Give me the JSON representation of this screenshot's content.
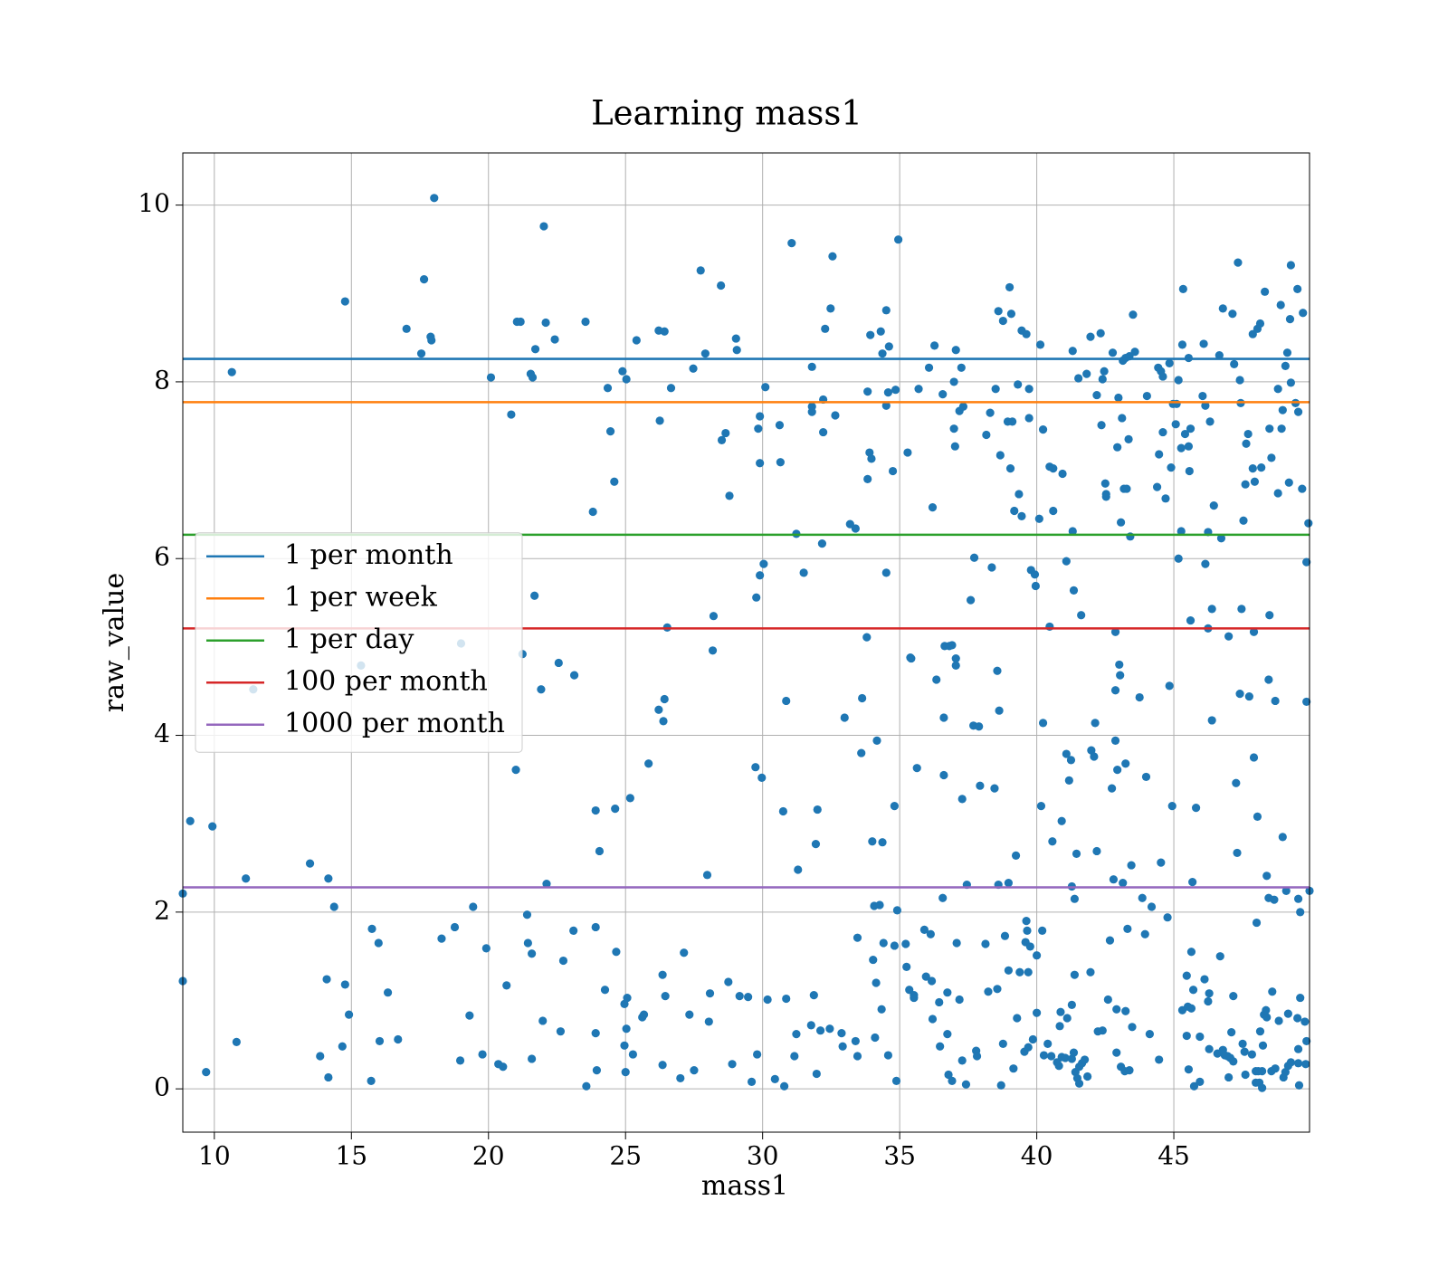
{
  "chart_data": {
    "type": "scatter",
    "title": "Learning mass1",
    "xlabel": "mass1",
    "ylabel": "raw_value",
    "color": "#1f77b4",
    "grid": true,
    "legend": "center left",
    "xlim": [
      8.85,
      49.95
    ],
    "ylim": [
      -0.49,
      10.59
    ],
    "xticks": [
      10,
      15,
      20,
      25,
      30,
      35,
      40,
      45
    ],
    "yticks": [
      0,
      2,
      4,
      6,
      8,
      10
    ],
    "lines": [
      {
        "name": "1 per month",
        "color": "#1f77b4",
        "value": 8.26
      },
      {
        "name": "1 per week",
        "color": "#ff7f0e",
        "value": 7.77
      },
      {
        "name": "1 per day",
        "color": "#2ca02c",
        "value": 6.27
      },
      {
        "name": "100 per month",
        "color": "#d62728",
        "value": 5.21
      },
      {
        "name": "1000 per month",
        "color": "#9467bd",
        "value": 2.28
      }
    ],
    "x": [
      8.85,
      8.85,
      9.12,
      9.7,
      9.93,
      10.64,
      10.81,
      11.15,
      11.42,
      13.49,
      13.86,
      14.1,
      14.16,
      14.16,
      14.37,
      14.67,
      14.77,
      14.77,
      14.91,
      15.35,
      15.72,
      15.75,
      15.99,
      16.03,
      16.33,
      16.7,
      17.01,
      17.55,
      17.65,
      17.89,
      17.92,
      18.02,
      18.29,
      18.77,
      18.97,
      19.0,
      19.31,
      19.44,
      19.78,
      19.92,
      20.09,
      20.36,
      20.53,
      20.66,
      20.83,
      21.0,
      21.04,
      21.17,
      21.24,
      21.41,
      21.44,
      21.54,
      21.58,
      21.58,
      21.61,
      21.68,
      21.71,
      21.92,
      21.98,
      22.02,
      22.09,
      22.12,
      22.42,
      22.56,
      22.63,
      22.73,
      23.1,
      23.13,
      23.54,
      23.57,
      23.81,
      23.91,
      23.91,
      23.91,
      23.95,
      24.05,
      24.25,
      24.35,
      24.45,
      24.59,
      24.62,
      24.66,
      24.89,
      24.96,
      24.96,
      25.0,
      25.03,
      25.03,
      25.06,
      25.17,
      25.27,
      25.4,
      25.61,
      25.67,
      25.84,
      26.21,
      26.25,
      26.21,
      26.35,
      26.35,
      26.42,
      26.38,
      26.42,
      26.45,
      26.52,
      26.66,
      27.0,
      27.13,
      27.33,
      27.47,
      27.5,
      27.74,
      27.91,
      27.98,
      28.04,
      28.08,
      28.18,
      28.21,
      28.48,
      28.51,
      28.65,
      28.75,
      28.79,
      28.89,
      29.03,
      29.06,
      29.16,
      29.47,
      29.6,
      29.74,
      29.77,
      29.8,
      29.84,
      29.9,
      29.9,
      29.9,
      29.97,
      30.04,
      30.1,
      30.18,
      30.45,
      30.62,
      30.65,
      30.75,
      30.79,
      30.86,
      30.86,
      31.06,
      31.16,
      31.23,
      31.23,
      31.29,
      31.5,
      31.77,
      31.8,
      31.8,
      31.8,
      31.87,
      31.94,
      31.97,
      32.0,
      32.11,
      32.17,
      32.21,
      32.21,
      32.28,
      32.48,
      32.45,
      32.55,
      32.65,
      32.88,
      32.92,
      32.99,
      33.19,
      33.39,
      33.39,
      33.46,
      33.46,
      33.6,
      33.63,
      33.8,
      33.83,
      33.83,
      33.9,
      33.93,
      33.97,
      34.0,
      34.03,
      34.07,
      34.1,
      34.14,
      34.17,
      34.27,
      34.31,
      34.34,
      34.37,
      34.37,
      34.41,
      34.51,
      34.51,
      34.51,
      34.58,
      34.58,
      34.61,
      34.75,
      34.81,
      34.81,
      34.85,
      34.88,
      34.91,
      34.95,
      35.22,
      35.25,
      35.29,
      35.35,
      35.39,
      35.42,
      35.52,
      35.52,
      35.63,
      35.69,
      35.9,
      35.96,
      36.07,
      36.13,
      36.17,
      36.2,
      36.2,
      36.27,
      36.34,
      36.44,
      36.47,
      36.57,
      36.57,
      36.61,
      36.61,
      36.64,
      36.74,
      36.74,
      36.78,
      36.81,
      36.91,
      36.91,
      36.98,
      36.98,
      37.02,
      37.05,
      37.05,
      37.05,
      37.08,
      37.18,
      37.18,
      37.25,
      37.28,
      37.28,
      37.32,
      37.42,
      37.45,
      37.59,
      37.69,
      37.72,
      37.79,
      37.82,
      37.89,
      37.93,
      38.13,
      38.16,
      38.23,
      38.3,
      38.36,
      38.46,
      38.5,
      38.56,
      38.56,
      38.6,
      38.6,
      38.63,
      38.67,
      38.7,
      38.77,
      38.77,
      38.84,
      38.94,
      38.97,
      38.97,
      39.01,
      39.04,
      39.11,
      39.07,
      39.15,
      39.18,
      39.24,
      39.28,
      39.31,
      39.35,
      39.38,
      39.45,
      39.45,
      39.55,
      39.59,
      39.62,
      39.62,
      39.65,
      39.69,
      39.69,
      39.72,
      39.72,
      39.76,
      39.79,
      39.86,
      39.93,
      39.96,
      40.0,
      40.0,
      40.09,
      40.13,
      40.16,
      40.2,
      40.23,
      40.23,
      40.26,
      40.4,
      40.47,
      40.47,
      40.53,
      40.57,
      40.6,
      40.6,
      40.74,
      40.81,
      40.84,
      40.87,
      40.91,
      40.91,
      40.94,
      41.04,
      41.08,
      41.08,
      41.11,
      41.18,
      41.25,
      41.28,
      41.28,
      41.28,
      41.31,
      41.31,
      41.35,
      41.35,
      41.38,
      41.38,
      41.41,
      41.45,
      41.48,
      41.52,
      41.55,
      41.55,
      41.62,
      41.65,
      41.75,
      41.82,
      41.85,
      41.96,
      41.96,
      41.99,
      42.09,
      42.13,
      42.19,
      42.19,
      42.23,
      42.33,
      42.36,
      42.4,
      42.4,
      42.46,
      42.5,
      42.53,
      42.53,
      42.6,
      42.67,
      42.74,
      42.77,
      42.8,
      42.87,
      42.87,
      42.87,
      42.91,
      42.91,
      42.94,
      42.94,
      42.98,
      43.01,
      43.04,
      43.07,
      43.07,
      43.11,
      43.14,
      43.14,
      43.18,
      43.21,
      43.24,
      43.24,
      43.24,
      43.28,
      43.31,
      43.35,
      43.38,
      43.38,
      43.41,
      43.45,
      43.48,
      43.51,
      43.58,
      43.75,
      43.85,
      43.95,
      43.99,
      44.02,
      44.12,
      44.19,
      44.39,
      44.43,
      44.46,
      44.46,
      44.53,
      44.53,
      44.6,
      44.6,
      44.7,
      44.77,
      44.84,
      44.84,
      44.9,
      44.94,
      44.97,
      45.07,
      45.1,
      45.17,
      45.17,
      45.27,
      45.27,
      45.31,
      45.34,
      45.31,
      45.41,
      45.47,
      45.47,
      45.51,
      45.54,
      45.54,
      45.54,
      45.57,
      45.61,
      45.61,
      45.64,
      45.64,
      45.68,
      45.71,
      45.74,
      45.81,
      45.95,
      45.95,
      46.05,
      46.09,
      46.12,
      46.15,
      46.15,
      46.25,
      46.25,
      46.25,
      46.29,
      46.29,
      46.32,
      46.39,
      46.39,
      46.46,
      46.59,
      46.66,
      46.69,
      46.73,
      46.79,
      46.79,
      46.86,
      46.96,
      47.0,
      47.0,
      47.06,
      47.1,
      47.14,
      47.17,
      47.17,
      47.2,
      47.27,
      47.31,
      47.34,
      47.41,
      47.41,
      47.44,
      47.47,
      47.51,
      47.54,
      47.58,
      47.61,
      47.61,
      47.64,
      47.71,
      47.75,
      47.85,
      47.88,
      47.88,
      47.92,
      47.92,
      47.95,
      47.99,
      47.99,
      48.02,
      48.05,
      48.05,
      48.08,
      48.12,
      48.15,
      48.15,
      48.19,
      48.22,
      48.22,
      48.25,
      48.29,
      48.32,
      48.36,
      48.39,
      48.39,
      48.46,
      48.46,
      48.49,
      48.49,
      48.56,
      48.56,
      48.59,
      48.66,
      48.7,
      48.7,
      48.8,
      48.8,
      48.83,
      48.9,
      48.93,
      48.97,
      48.97,
      49.0,
      49.07,
      49.07,
      49.1,
      49.14,
      49.17,
      49.2,
      49.24,
      49.27,
      49.27,
      49.27,
      49.44,
      49.51,
      49.51,
      49.54,
      49.54,
      49.54,
      49.54,
      49.57,
      49.61,
      49.68,
      49.71,
      49.78,
      49.81,
      49.84,
      49.84,
      49.84,
      49.91,
      49.95,
      49.61,
      49.17
    ],
    "values": [
      2.21,
      1.22,
      3.03,
      0.19,
      2.97,
      8.11,
      0.53,
      2.38,
      4.52,
      2.55,
      0.37,
      1.24,
      2.38,
      0.13,
      2.06,
      0.48,
      8.91,
      1.18,
      0.84,
      4.79,
      0.09,
      1.81,
      1.65,
      0.54,
      1.09,
      0.56,
      8.6,
      8.32,
      9.16,
      8.51,
      8.47,
      10.08,
      1.7,
      1.83,
      0.32,
      5.04,
      0.83,
      2.06,
      0.39,
      1.59,
      8.05,
      0.28,
      0.25,
      1.17,
      7.63,
      3.61,
      8.68,
      8.68,
      4.92,
      1.97,
      1.65,
      8.09,
      1.53,
      0.34,
      8.05,
      5.58,
      8.37,
      4.52,
      0.77,
      9.76,
      8.67,
      2.32,
      8.48,
      4.82,
      0.65,
      1.45,
      1.79,
      4.68,
      8.68,
      0.03,
      6.53,
      3.15,
      1.83,
      0.63,
      0.21,
      2.69,
      1.12,
      7.93,
      7.44,
      6.87,
      3.17,
      1.55,
      8.12,
      0.96,
      0.49,
      0.19,
      0.68,
      8.03,
      1.03,
      3.29,
      0.39,
      8.47,
      0.81,
      0.84,
      3.68,
      8.58,
      7.56,
      4.29,
      1.29,
      0.27,
      8.57,
      4.16,
      4.41,
      1.05,
      5.22,
      7.93,
      0.12,
      1.54,
      0.84,
      8.15,
      0.21,
      9.26,
      8.32,
      2.42,
      0.76,
      1.08,
      4.96,
      5.35,
      9.09,
      7.34,
      7.42,
      1.21,
      6.71,
      0.28,
      8.49,
      8.36,
      1.05,
      1.04,
      0.08,
      3.64,
      5.56,
      0.39,
      7.47,
      7.61,
      7.08,
      5.81,
      3.52,
      5.94,
      7.94,
      1.01,
      0.11,
      7.51,
      7.09,
      3.14,
      0.03,
      4.39,
      1.02,
      9.57,
      0.37,
      6.28,
      0.62,
      2.48,
      5.84,
      0.72,
      8.17,
      7.72,
      7.66,
      1.06,
      2.77,
      0.17,
      3.16,
      0.66,
      6.17,
      7.43,
      7.8,
      8.6,
      8.83,
      0.68,
      9.42,
      7.62,
      0.63,
      0.48,
      4.2,
      6.39,
      0.54,
      6.34,
      0.37,
      1.71,
      3.8,
      4.42,
      5.11,
      7.89,
      6.9,
      7.2,
      8.53,
      7.13,
      2.8,
      1.46,
      2.07,
      0.58,
      1.2,
      3.94,
      2.08,
      8.57,
      0.9,
      8.32,
      2.79,
      1.65,
      7.73,
      5.84,
      8.81,
      0.38,
      7.88,
      8.4,
      6.99,
      1.62,
      3.2,
      7.91,
      0.09,
      2.02,
      9.61,
      1.64,
      1.38,
      7.2,
      1.12,
      4.88,
      4.87,
      1.06,
      1.03,
      3.63,
      7.92,
      1.8,
      1.27,
      8.16,
      1.75,
      1.22,
      6.58,
      0.79,
      8.41,
      4.63,
      0.98,
      0.48,
      2.16,
      7.86,
      4.2,
      3.55,
      5.01,
      1.09,
      0.62,
      0.16,
      5.01,
      5.02,
      0.09,
      8.0,
      7.47,
      7.27,
      8.36,
      4.79,
      4.87,
      1.65,
      1.01,
      7.67,
      8.16,
      3.28,
      0.32,
      7.72,
      0.05,
      2.31,
      5.53,
      4.11,
      6.01,
      0.43,
      0.37,
      4.1,
      3.43,
      1.64,
      7.4,
      1.1,
      7.65,
      5.9,
      3.4,
      7.92,
      1.13,
      4.73,
      2.31,
      8.8,
      4.28,
      7.17,
      0.04,
      0.51,
      8.69,
      1.73,
      7.55,
      1.34,
      2.33,
      9.07,
      7.02,
      7.55,
      8.77,
      0.23,
      6.54,
      2.64,
      0.8,
      7.97,
      6.73,
      1.32,
      8.58,
      6.48,
      0.42,
      1.66,
      8.54,
      1.9,
      1.79,
      0.47,
      1.32,
      7.92,
      7.59,
      1.61,
      5.87,
      0.56,
      5.82,
      5.69,
      1.51,
      0.86,
      6.45,
      8.42,
      3.2,
      1.79,
      7.46,
      4.14,
      0.38,
      0.51,
      5.23,
      7.04,
      0.37,
      2.8,
      6.54,
      7.02,
      0.3,
      0.26,
      0.71,
      0.87,
      3.03,
      0.36,
      6.96,
      0.35,
      5.97,
      3.79,
      0.8,
      3.49,
      3.72,
      0.34,
      0.95,
      2.29,
      6.31,
      8.35,
      0.41,
      5.64,
      1.29,
      2.15,
      0.19,
      2.66,
      0.12,
      8.04,
      0.25,
      0.06,
      5.36,
      0.29,
      0.33,
      8.09,
      0.14,
      1.32,
      8.51,
      3.83,
      3.76,
      4.14,
      7.85,
      2.69,
      0.65,
      8.55,
      7.51,
      0.66,
      8.03,
      8.12,
      6.85,
      6.73,
      6.7,
      1.01,
      1.68,
      3.4,
      8.33,
      2.37,
      5.17,
      3.94,
      4.51,
      0.41,
      0.9,
      3.61,
      7.26,
      7.82,
      4.8,
      4.68,
      0.25,
      6.41,
      7.59,
      8.24,
      2.33,
      6.79,
      0.2,
      3.68,
      0.88,
      8.27,
      6.79,
      1.81,
      7.35,
      8.29,
      0.21,
      6.25,
      2.53,
      0.7,
      8.76,
      8.34,
      4.43,
      2.16,
      1.75,
      3.53,
      7.84,
      0.62,
      2.06,
      6.81,
      8.16,
      0.33,
      7.18,
      2.56,
      8.12,
      8.06,
      7.43,
      6.68,
      1.94,
      8.21,
      4.56,
      7.03,
      3.2,
      7.75,
      7.52,
      7.75,
      6.0,
      8.02,
      7.25,
      6.31,
      0.89,
      9.05,
      8.42,
      7.41,
      0.6,
      1.28,
      0.93,
      0.22,
      8.27,
      7.27,
      6.99,
      5.3,
      7.47,
      1.55,
      0.91,
      2.34,
      1.12,
      0.03,
      3.18,
      0.59,
      0.08,
      7.84,
      8.43,
      1.24,
      5.94,
      7.73,
      0.99,
      5.21,
      6.3,
      0.45,
      1.08,
      7.55,
      4.17,
      5.43,
      6.6,
      0.4,
      8.3,
      1.5,
      6.23,
      8.83,
      0.44,
      0.38,
      0.37,
      0.13,
      5.12,
      0.35,
      0.64,
      8.77,
      0.31,
      1.05,
      8.2,
      3.46,
      2.67,
      9.35,
      4.47,
      8.02,
      7.76,
      5.43,
      0.51,
      6.43,
      0.42,
      0.16,
      6.84,
      7.3,
      7.41,
      4.44,
      0.39,
      8.54,
      7.02,
      3.75,
      5.17,
      6.87,
      0.2,
      0.07,
      1.88,
      3.08,
      8.6,
      0.2,
      0.07,
      8.66,
      0.65,
      7.03,
      0.2,
      0.01,
      0.49,
      0.84,
      9.02,
      0.89,
      0.81,
      2.41,
      2.16,
      4.63,
      7.47,
      5.36,
      0.2,
      7.14,
      1.1,
      2.14,
      4.39,
      0.23,
      7.92,
      6.74,
      0.77,
      8.87,
      7.47,
      7.68,
      2.85,
      0.13,
      0.19,
      8.18,
      2.24,
      8.33,
      0.26,
      6.86,
      8.71,
      0.3,
      9.32,
      7.99,
      7.76,
      9.05,
      0.8,
      0.29,
      0.45,
      2.15,
      7.66,
      0.04,
      1.03,
      6.79,
      8.78,
      0.76,
      0.28,
      0.54,
      5.96,
      4.38,
      6.4,
      2.24,
      2.0,
      0.85
    ]
  }
}
